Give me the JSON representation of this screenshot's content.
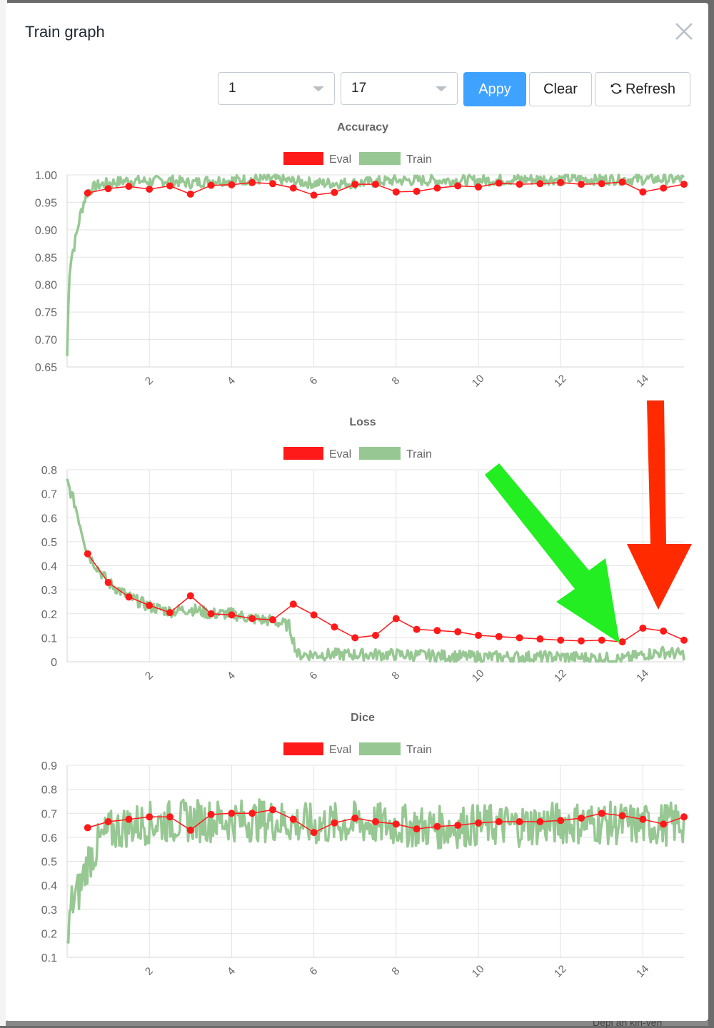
{
  "modal": {
    "title": "Train graph"
  },
  "toolbar": {
    "select_from": "1",
    "select_to": "17",
    "apply_label": "Appy",
    "clear_label": "Clear",
    "refresh_label": "Refresh"
  },
  "colors": {
    "eval": "#ff1a1a",
    "train": "#97c893",
    "primary": "#3fa2ff",
    "grid": "#e3e3e3",
    "green_arrow": "#22ee22",
    "red_arrow": "#ff2a00"
  },
  "legend": {
    "eval": "Eval",
    "train": "Train"
  },
  "background": {
    "text": "Depl an kin-veh"
  },
  "chart_data": [
    {
      "type": "line",
      "title": "Accuracy",
      "ylim": [
        0.65,
        1.0
      ],
      "yticks": [
        "1.00",
        "0.95",
        "0.90",
        "0.85",
        "0.80",
        "0.75",
        "0.70",
        "0.65"
      ],
      "xlim": [
        0.0,
        15.0
      ],
      "xticks": [
        "2",
        "4",
        "6",
        "8",
        "10",
        "12",
        "14"
      ],
      "series": [
        {
          "name": "Eval",
          "x": [
            0.5,
            1,
            1.5,
            2,
            2.5,
            3,
            3.5,
            4,
            4.5,
            5,
            5.5,
            6,
            6.5,
            7,
            7.5,
            8,
            8.5,
            9,
            9.5,
            10,
            10.5,
            11,
            11.5,
            12,
            12.5,
            13,
            13.5,
            14,
            14.5,
            15
          ],
          "values": [
            0.967,
            0.975,
            0.979,
            0.974,
            0.98,
            0.965,
            0.981,
            0.982,
            0.986,
            0.984,
            0.976,
            0.963,
            0.968,
            0.983,
            0.983,
            0.969,
            0.97,
            0.976,
            0.98,
            0.978,
            0.985,
            0.983,
            0.984,
            0.986,
            0.983,
            0.984,
            0.987,
            0.969,
            0.976,
            0.983
          ]
        },
        {
          "name": "Train",
          "x": [
            0.0,
            0.05,
            0.1,
            0.2,
            0.3,
            0.4,
            0.5,
            0.7,
            1,
            1.5,
            2,
            2.5,
            3,
            3.5,
            4,
            4.5,
            5,
            6,
            7,
            8,
            9,
            10,
            11,
            12,
            13,
            14,
            15
          ],
          "values": [
            0.67,
            0.82,
            0.85,
            0.88,
            0.92,
            0.95,
            0.97,
            0.98,
            0.985,
            0.99,
            0.988,
            0.99,
            0.985,
            0.99,
            0.99,
            0.992,
            0.992,
            0.985,
            0.985,
            0.99,
            0.99,
            0.99,
            0.992,
            0.992,
            0.992,
            0.992,
            0.992
          ]
        }
      ]
    },
    {
      "type": "line",
      "title": "Loss",
      "ylim": [
        0,
        0.8
      ],
      "yticks": [
        "0.8",
        "0.7",
        "0.6",
        "0.5",
        "0.4",
        "0.3",
        "0.2",
        "0.1",
        "0"
      ],
      "xlim": [
        0.0,
        15.0
      ],
      "xticks": [
        "2",
        "4",
        "6",
        "8",
        "10",
        "12",
        "14"
      ],
      "series": [
        {
          "name": "Eval",
          "x": [
            0.5,
            1,
            1.5,
            2,
            2.5,
            3,
            3.5,
            4,
            4.5,
            5,
            5.5,
            6,
            6.5,
            7,
            7.5,
            8,
            8.5,
            9,
            9.5,
            10,
            10.5,
            11,
            11.5,
            12,
            12.5,
            13,
            13.5,
            14,
            14.5,
            15
          ],
          "values": [
            0.45,
            0.33,
            0.27,
            0.235,
            0.205,
            0.275,
            0.2,
            0.195,
            0.18,
            0.175,
            0.24,
            0.195,
            0.145,
            0.1,
            0.11,
            0.18,
            0.135,
            0.13,
            0.125,
            0.11,
            0.105,
            0.1,
            0.095,
            0.09,
            0.087,
            0.09,
            0.083,
            0.14,
            0.128,
            0.09
          ]
        },
        {
          "name": "Train",
          "x": [
            0.0,
            0.2,
            0.5,
            1,
            1.5,
            2,
            2.5,
            3,
            3.5,
            4,
            4.5,
            5,
            5.4,
            5.6,
            6,
            7,
            8,
            9,
            10,
            11,
            12,
            13,
            13.5,
            14,
            14.5,
            15
          ],
          "values": [
            0.75,
            0.65,
            0.45,
            0.33,
            0.27,
            0.23,
            0.21,
            0.22,
            0.2,
            0.2,
            0.18,
            0.17,
            0.15,
            0.03,
            0.03,
            0.03,
            0.03,
            0.025,
            0.02,
            0.02,
            0.02,
            0.015,
            0.01,
            0.03,
            0.04,
            0.03
          ]
        }
      ]
    },
    {
      "type": "line",
      "title": "Dice",
      "ylim": [
        0.1,
        0.9
      ],
      "yticks": [
        "0.9",
        "0.8",
        "0.7",
        "0.6",
        "0.5",
        "0.4",
        "0.3",
        "0.2",
        "0.1"
      ],
      "xlim": [
        0.0,
        15.0
      ],
      "xticks": [
        "2",
        "4",
        "6",
        "8",
        "10",
        "12",
        "14"
      ],
      "series": [
        {
          "name": "Eval",
          "x": [
            0.5,
            1,
            1.5,
            2,
            2.5,
            3,
            3.5,
            4,
            4.5,
            5,
            5.5,
            6,
            6.5,
            7,
            7.5,
            8,
            8.5,
            9,
            9.5,
            10,
            10.5,
            11,
            11.5,
            12,
            12.5,
            13,
            13.5,
            14,
            14.5,
            15
          ],
          "values": [
            0.64,
            0.665,
            0.675,
            0.685,
            0.685,
            0.63,
            0.695,
            0.7,
            0.7,
            0.715,
            0.675,
            0.62,
            0.66,
            0.68,
            0.665,
            0.655,
            0.635,
            0.645,
            0.65,
            0.66,
            0.665,
            0.665,
            0.665,
            0.67,
            0.68,
            0.7,
            0.69,
            0.675,
            0.655,
            0.685
          ]
        },
        {
          "name": "Train",
          "x": [
            0.0,
            0.1,
            0.3,
            0.5,
            0.8,
            1,
            1.5,
            2,
            3,
            4,
            5,
            6,
            7,
            8,
            9,
            10,
            11,
            12,
            13,
            14,
            15
          ],
          "values": [
            0.12,
            0.32,
            0.38,
            0.5,
            0.58,
            0.62,
            0.65,
            0.66,
            0.67,
            0.67,
            0.67,
            0.65,
            0.66,
            0.65,
            0.64,
            0.65,
            0.65,
            0.66,
            0.66,
            0.65,
            0.66
          ]
        }
      ]
    }
  ]
}
